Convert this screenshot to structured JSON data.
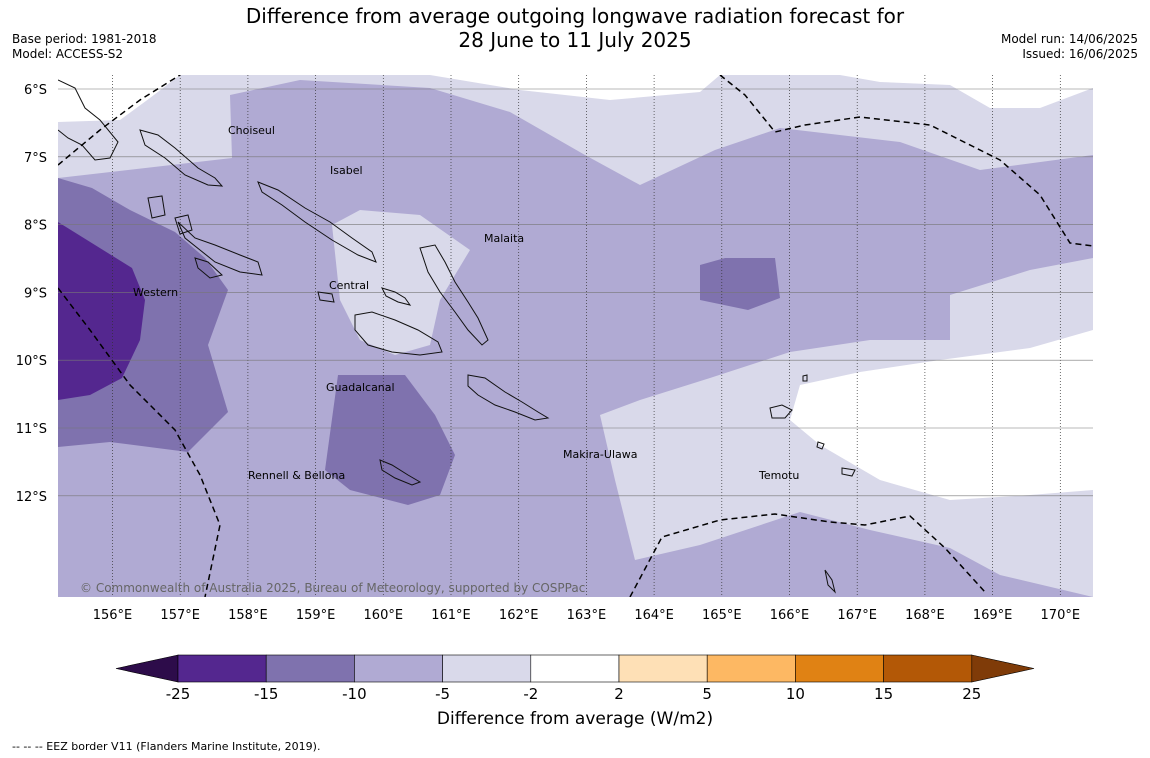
{
  "title": {
    "line1": "Difference from average outgoing longwave radiation forecast for",
    "line2": "28 June to 11 July 2025"
  },
  "info_left": {
    "base_period": "Base period: 1981-2018",
    "model": "Model: ACCESS-S2"
  },
  "info_right": {
    "model_run": "Model run: 14/06/2025",
    "issued": "Issued: 16/06/2025"
  },
  "map": {
    "lat_labels": [
      "6°S",
      "7°S",
      "8°S",
      "9°S",
      "10°S",
      "11°S",
      "12°S"
    ],
    "lon_labels": [
      "156°E",
      "157°E",
      "158°E",
      "159°E",
      "160°E",
      "161°E",
      "162°E",
      "163°E",
      "164°E",
      "165°E",
      "166°E",
      "167°E",
      "168°E",
      "169°E",
      "170°E"
    ],
    "province_labels": [
      {
        "name": "Choiseul"
      },
      {
        "name": "Isabel"
      },
      {
        "name": "Malaita"
      },
      {
        "name": "Central"
      },
      {
        "name": "Western"
      },
      {
        "name": "Guadalcanal"
      },
      {
        "name": "Makira-Ulawa"
      },
      {
        "name": "Rennell & Bellona"
      },
      {
        "name": "Temotu"
      }
    ],
    "copyright": "© Commonwealth of Australia 2025, Bureau of Meteorology, supported by COSPPac"
  },
  "colorbar": {
    "tick_labels": [
      "-25",
      "-15",
      "-10",
      "-5",
      "-2",
      "2",
      "5",
      "10",
      "15",
      "25"
    ],
    "colors": {
      "lt_minus25": "#2d0c4a",
      "minus25_minus15": "#54278f",
      "minus15_minus10": "#7f72ae",
      "minus10_minus5": "#b0aad3",
      "minus5_minus2": "#d9d9ea",
      "minus2_2": "#ffffff",
      "2_5": "#fee0b6",
      "5_10": "#fdb863",
      "10_15": "#e08214",
      "15_25": "#b35806",
      "gt_25": "#7f3b08"
    },
    "label": "Difference from average (W/m2)"
  },
  "footer": {
    "eez_note": "--  --  -- EEZ border V11 (Flanders Marine Institute, 2019)."
  }
}
